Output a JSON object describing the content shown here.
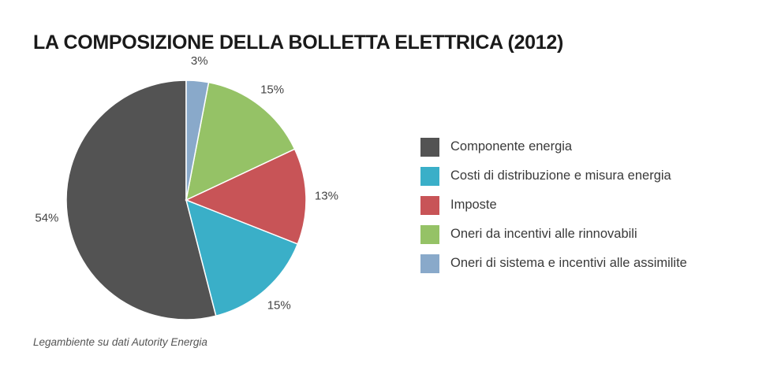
{
  "chart_data": {
    "type": "pie",
    "title": "LA COMPOSIZIONE DELLA BOLLETTA ELETTRICA (2012)",
    "source": "Legambiente su dati Autority Energia",
    "slices": [
      {
        "name": "Componente energia",
        "value": 54,
        "label": "54%",
        "color": "#535353"
      },
      {
        "name": "Costi di distribuzione e misura energia",
        "value": 15,
        "label": "15%",
        "color": "#3aafc8"
      },
      {
        "name": "Imposte",
        "value": 13,
        "label": "13%",
        "color": "#c85457"
      },
      {
        "name": "Oneri da incentivi alle rinnovabili",
        "value": 15,
        "label": "15%",
        "color": "#95c266"
      },
      {
        "name": "Oneri di sistema e incentivi alle assimilite",
        "value": 3,
        "label": "3%",
        "color": "#89a9ca"
      }
    ],
    "legend_position": "right"
  }
}
